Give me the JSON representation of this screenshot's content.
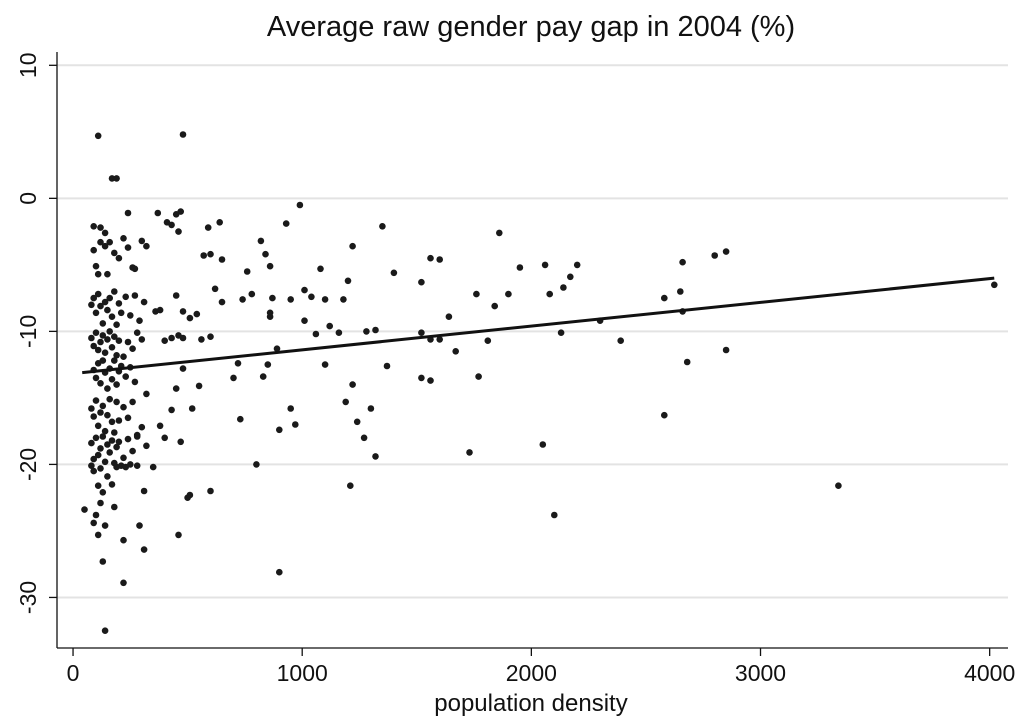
{
  "chart_data": {
    "type": "scatter",
    "title": "Average raw gender pay gap in 2004 (%)",
    "xlabel": "population density",
    "ylabel": "",
    "xlim": [
      -70,
      4080
    ],
    "ylim": [
      -33.8,
      11.0
    ],
    "xticks": [
      0,
      1000,
      2000,
      3000,
      4000
    ],
    "yticks": [
      10,
      0,
      -10,
      -20,
      -30
    ],
    "grid": true,
    "colors": {
      "point": "#1a1a1a",
      "grid": "#e3e3e3",
      "line": "#111111"
    },
    "fit_line": {
      "x": [
        40,
        4020
      ],
      "y": [
        -13.1,
        -6.0
      ]
    },
    "points": [
      [
        110,
        4.7
      ],
      [
        480,
        4.8
      ],
      [
        170,
        1.5
      ],
      [
        190,
        1.5
      ],
      [
        990,
        -0.5
      ],
      [
        470,
        -1.0
      ],
      [
        450,
        -1.2
      ],
      [
        240,
        -1.1
      ],
      [
        370,
        -1.1
      ],
      [
        90,
        -2.1
      ],
      [
        120,
        -2.2
      ],
      [
        140,
        -2.6
      ],
      [
        430,
        -2.0
      ],
      [
        410,
        -1.8
      ],
      [
        640,
        -1.8
      ],
      [
        590,
        -2.2
      ],
      [
        930,
        -1.9
      ],
      [
        1350,
        -2.1
      ],
      [
        1860,
        -2.6
      ],
      [
        460,
        -2.5
      ],
      [
        120,
        -3.3
      ],
      [
        140,
        -3.6
      ],
      [
        160,
        -3.3
      ],
      [
        180,
        -4.1
      ],
      [
        200,
        -4.5
      ],
      [
        220,
        -3.0
      ],
      [
        240,
        -3.7
      ],
      [
        260,
        -5.2
      ],
      [
        300,
        -3.2
      ],
      [
        320,
        -3.6
      ],
      [
        820,
        -3.2
      ],
      [
        90,
        -3.9
      ],
      [
        100,
        -5.1
      ],
      [
        110,
        -5.7
      ],
      [
        150,
        -5.7
      ],
      [
        570,
        -4.3
      ],
      [
        600,
        -4.2
      ],
      [
        650,
        -4.6
      ],
      [
        760,
        -5.5
      ],
      [
        860,
        -5.1
      ],
      [
        1080,
        -5.3
      ],
      [
        1220,
        -3.6
      ],
      [
        1400,
        -5.6
      ],
      [
        1560,
        -4.5
      ],
      [
        1600,
        -4.6
      ],
      [
        1760,
        -7.2
      ],
      [
        1950,
        -5.2
      ],
      [
        2200,
        -5.0
      ],
      [
        2060,
        -5.0
      ],
      [
        2660,
        -4.8
      ],
      [
        2800,
        -4.3
      ],
      [
        2850,
        -4.0
      ],
      [
        840,
        -4.2
      ],
      [
        270,
        -5.3
      ],
      [
        80,
        -8.0
      ],
      [
        90,
        -7.5
      ],
      [
        100,
        -8.6
      ],
      [
        110,
        -7.2
      ],
      [
        120,
        -8.1
      ],
      [
        130,
        -9.4
      ],
      [
        140,
        -7.8
      ],
      [
        150,
        -8.4
      ],
      [
        160,
        -7.5
      ],
      [
        170,
        -8.9
      ],
      [
        180,
        -7.0
      ],
      [
        190,
        -9.5
      ],
      [
        200,
        -7.9
      ],
      [
        210,
        -8.6
      ],
      [
        230,
        -7.4
      ],
      [
        250,
        -8.8
      ],
      [
        270,
        -7.3
      ],
      [
        290,
        -9.2
      ],
      [
        310,
        -7.8
      ],
      [
        360,
        -8.5
      ],
      [
        380,
        -8.4
      ],
      [
        450,
        -7.3
      ],
      [
        480,
        -8.5
      ],
      [
        510,
        -9.0
      ],
      [
        540,
        -8.7
      ],
      [
        620,
        -6.8
      ],
      [
        650,
        -7.8
      ],
      [
        740,
        -7.6
      ],
      [
        780,
        -7.2
      ],
      [
        860,
        -8.6
      ],
      [
        860,
        -8.9
      ],
      [
        870,
        -7.5
      ],
      [
        950,
        -7.6
      ],
      [
        1010,
        -6.9
      ],
      [
        1040,
        -7.4
      ],
      [
        1100,
        -7.6
      ],
      [
        1180,
        -7.6
      ],
      [
        1200,
        -6.2
      ],
      [
        1520,
        -6.3
      ],
      [
        1840,
        -8.1
      ],
      [
        1900,
        -7.2
      ],
      [
        2080,
        -7.2
      ],
      [
        2140,
        -6.7
      ],
      [
        2170,
        -5.9
      ],
      [
        2580,
        -7.5
      ],
      [
        2650,
        -7.0
      ],
      [
        2660,
        -8.5
      ],
      [
        4020,
        -6.5
      ],
      [
        1640,
        -8.9
      ],
      [
        1120,
        -9.6
      ],
      [
        1010,
        -9.2
      ],
      [
        80,
        -10.5
      ],
      [
        90,
        -11.1
      ],
      [
        100,
        -10.1
      ],
      [
        110,
        -11.4
      ],
      [
        120,
        -10.8
      ],
      [
        130,
        -10.3
      ],
      [
        140,
        -11.6
      ],
      [
        150,
        -10.6
      ],
      [
        160,
        -10.0
      ],
      [
        170,
        -11.2
      ],
      [
        180,
        -10.4
      ],
      [
        190,
        -11.8
      ],
      [
        200,
        -10.7
      ],
      [
        220,
        -11.9
      ],
      [
        240,
        -10.8
      ],
      [
        260,
        -11.3
      ],
      [
        280,
        -10.1
      ],
      [
        300,
        -10.6
      ],
      [
        400,
        -10.7
      ],
      [
        430,
        -10.5
      ],
      [
        460,
        -10.3
      ],
      [
        480,
        -10.5
      ],
      [
        560,
        -10.6
      ],
      [
        600,
        -10.4
      ],
      [
        890,
        -11.3
      ],
      [
        1060,
        -10.2
      ],
      [
        1160,
        -10.1
      ],
      [
        1280,
        -10.0
      ],
      [
        1320,
        -9.9
      ],
      [
        1520,
        -10.1
      ],
      [
        1560,
        -10.6
      ],
      [
        1600,
        -10.6
      ],
      [
        1670,
        -11.5
      ],
      [
        1810,
        -10.7
      ],
      [
        2130,
        -10.1
      ],
      [
        2300,
        -9.2
      ],
      [
        2390,
        -10.7
      ],
      [
        90,
        -12.9
      ],
      [
        100,
        -13.5
      ],
      [
        110,
        -12.4
      ],
      [
        120,
        -13.9
      ],
      [
        130,
        -12.2
      ],
      [
        140,
        -13.1
      ],
      [
        150,
        -14.3
      ],
      [
        160,
        -12.8
      ],
      [
        170,
        -13.6
      ],
      [
        180,
        -12.2
      ],
      [
        190,
        -14.0
      ],
      [
        200,
        -13.0
      ],
      [
        210,
        -12.6
      ],
      [
        230,
        -13.4
      ],
      [
        250,
        -12.7
      ],
      [
        270,
        -13.8
      ],
      [
        320,
        -14.7
      ],
      [
        450,
        -14.3
      ],
      [
        480,
        -12.8
      ],
      [
        550,
        -14.1
      ],
      [
        700,
        -13.5
      ],
      [
        720,
        -12.4
      ],
      [
        830,
        -13.4
      ],
      [
        850,
        -12.5
      ],
      [
        1100,
        -12.5
      ],
      [
        1220,
        -14.0
      ],
      [
        1370,
        -12.6
      ],
      [
        1520,
        -13.5
      ],
      [
        1560,
        -13.7
      ],
      [
        1770,
        -13.4
      ],
      [
        2680,
        -12.3
      ],
      [
        2850,
        -11.4
      ],
      [
        80,
        -15.8
      ],
      [
        90,
        -16.4
      ],
      [
        100,
        -15.2
      ],
      [
        110,
        -17.1
      ],
      [
        120,
        -16.1
      ],
      [
        130,
        -15.6
      ],
      [
        140,
        -17.5
      ],
      [
        150,
        -16.3
      ],
      [
        160,
        -15.1
      ],
      [
        170,
        -16.8
      ],
      [
        180,
        -17.6
      ],
      [
        190,
        -15.3
      ],
      [
        200,
        -16.7
      ],
      [
        220,
        -15.7
      ],
      [
        240,
        -16.5
      ],
      [
        260,
        -15.3
      ],
      [
        280,
        -17.8
      ],
      [
        300,
        -17.2
      ],
      [
        380,
        -17.1
      ],
      [
        430,
        -15.9
      ],
      [
        520,
        -15.8
      ],
      [
        730,
        -16.6
      ],
      [
        950,
        -15.8
      ],
      [
        1190,
        -15.3
      ],
      [
        1240,
        -16.8
      ],
      [
        1300,
        -15.8
      ],
      [
        2580,
        -16.3
      ],
      [
        970,
        -17.0
      ],
      [
        80,
        -18.4
      ],
      [
        90,
        -19.6
      ],
      [
        100,
        -18.0
      ],
      [
        110,
        -19.3
      ],
      [
        120,
        -18.8
      ],
      [
        130,
        -17.9
      ],
      [
        140,
        -19.8
      ],
      [
        150,
        -18.5
      ],
      [
        160,
        -19.1
      ],
      [
        170,
        -18.2
      ],
      [
        180,
        -19.9
      ],
      [
        190,
        -18.7
      ],
      [
        200,
        -18.3
      ],
      [
        220,
        -19.5
      ],
      [
        240,
        -18.1
      ],
      [
        260,
        -19.0
      ],
      [
        280,
        -17.9
      ],
      [
        320,
        -18.6
      ],
      [
        400,
        -18.0
      ],
      [
        470,
        -18.3
      ],
      [
        900,
        -17.4
      ],
      [
        1270,
        -18.0
      ],
      [
        1730,
        -19.1
      ],
      [
        2050,
        -18.5
      ],
      [
        1320,
        -19.4
      ],
      [
        2100,
        -23.8
      ],
      [
        3340,
        -21.6
      ],
      [
        1210,
        -21.6
      ],
      [
        80,
        -20.1
      ],
      [
        90,
        -20.5
      ],
      [
        110,
        -21.6
      ],
      [
        120,
        -20.3
      ],
      [
        130,
        -22.1
      ],
      [
        150,
        -20.9
      ],
      [
        170,
        -21.5
      ],
      [
        190,
        -20.2
      ],
      [
        210,
        -20.1
      ],
      [
        230,
        -20.2
      ],
      [
        250,
        -20.0
      ],
      [
        280,
        -20.1
      ],
      [
        310,
        -22.0
      ],
      [
        350,
        -20.2
      ],
      [
        500,
        -22.5
      ],
      [
        510,
        -22.3
      ],
      [
        600,
        -22.0
      ],
      [
        800,
        -20.0
      ],
      [
        50,
        -23.4
      ],
      [
        90,
        -24.4
      ],
      [
        100,
        -23.8
      ],
      [
        110,
        -25.3
      ],
      [
        120,
        -22.9
      ],
      [
        140,
        -24.6
      ],
      [
        180,
        -23.2
      ],
      [
        220,
        -25.7
      ],
      [
        290,
        -24.6
      ],
      [
        310,
        -26.4
      ],
      [
        460,
        -25.3
      ],
      [
        130,
        -27.3
      ],
      [
        220,
        -28.9
      ],
      [
        900,
        -28.1
      ],
      [
        140,
        -32.5
      ]
    ]
  }
}
